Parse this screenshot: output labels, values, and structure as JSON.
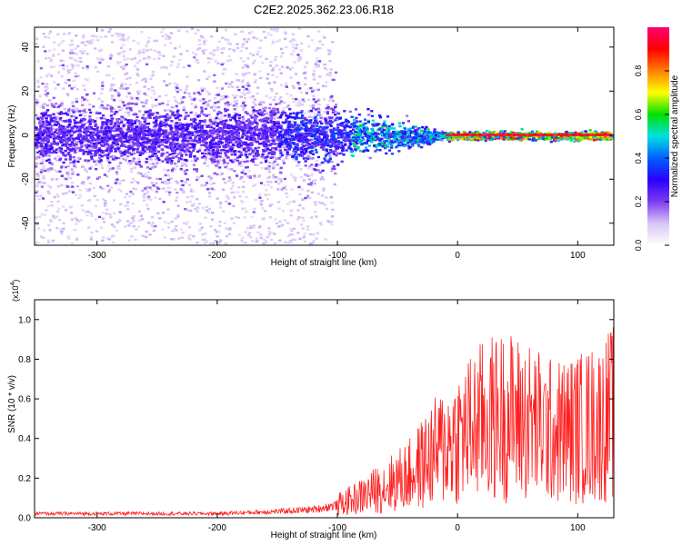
{
  "title": "C2E2.2025.362.23.06.R18",
  "chart_data": [
    {
      "type": "heatmap",
      "ylabel": "Frequency (Hz)",
      "xlabel": "Height of straight line (km)",
      "xlim": [
        -352,
        130
      ],
      "ylim": [
        -50,
        49
      ],
      "xticks": [
        -300,
        -200,
        -100,
        0,
        100
      ],
      "yticks": [
        -40,
        -20,
        0,
        20,
        40
      ],
      "colorbar": {
        "label": "Normalized spectral amplitude",
        "range": [
          0,
          1
        ],
        "ticks": [
          "0.0",
          "0.2",
          "0.4",
          "0.6",
          "0.8"
        ],
        "colormap": [
          "#ffffff",
          "#d8c6f6",
          "#7d3cf0",
          "#2a00ff",
          "#0060ff",
          "#00e0e0",
          "#00e000",
          "#ffff00",
          "#ff8000",
          "#ff0000",
          "#ff0070"
        ]
      },
      "features": {
        "band_center_hz": 0,
        "band_halfwidth_hz_left": 10,
        "band_halfwidth_hz_right": 1.5,
        "scatter_extent_km": [
          -352,
          -105
        ],
        "max_amplitude_region_km": [
          -10,
          130
        ]
      }
    },
    {
      "type": "line",
      "ylabel": "SNR (10 * v/v)",
      "xlabel": "Height of straight line (km)",
      "scale_label": "(x10",
      "scale_exp": "4",
      "xlim": [
        -352,
        130
      ],
      "ylim": [
        0,
        1.1
      ],
      "xticks": [
        -300,
        -200,
        -100,
        0,
        100
      ],
      "yticks": [
        "0.0",
        "0.2",
        "0.4",
        "0.6",
        "0.8",
        "1.0"
      ],
      "color": "#ff2020",
      "series": [
        {
          "x": [
            -352,
            -300,
            -200,
            -150,
            -120,
            -100,
            -80,
            -60,
            -40,
            -20,
            0,
            20,
            40,
            60,
            80,
            100,
            120,
            130
          ],
          "y": [
            0.02,
            0.02,
            0.02,
            0.03,
            0.04,
            0.06,
            0.1,
            0.15,
            0.2,
            0.3,
            0.38,
            0.45,
            0.48,
            0.45,
            0.4,
            0.42,
            0.45,
            0.5
          ]
        }
      ]
    }
  ]
}
